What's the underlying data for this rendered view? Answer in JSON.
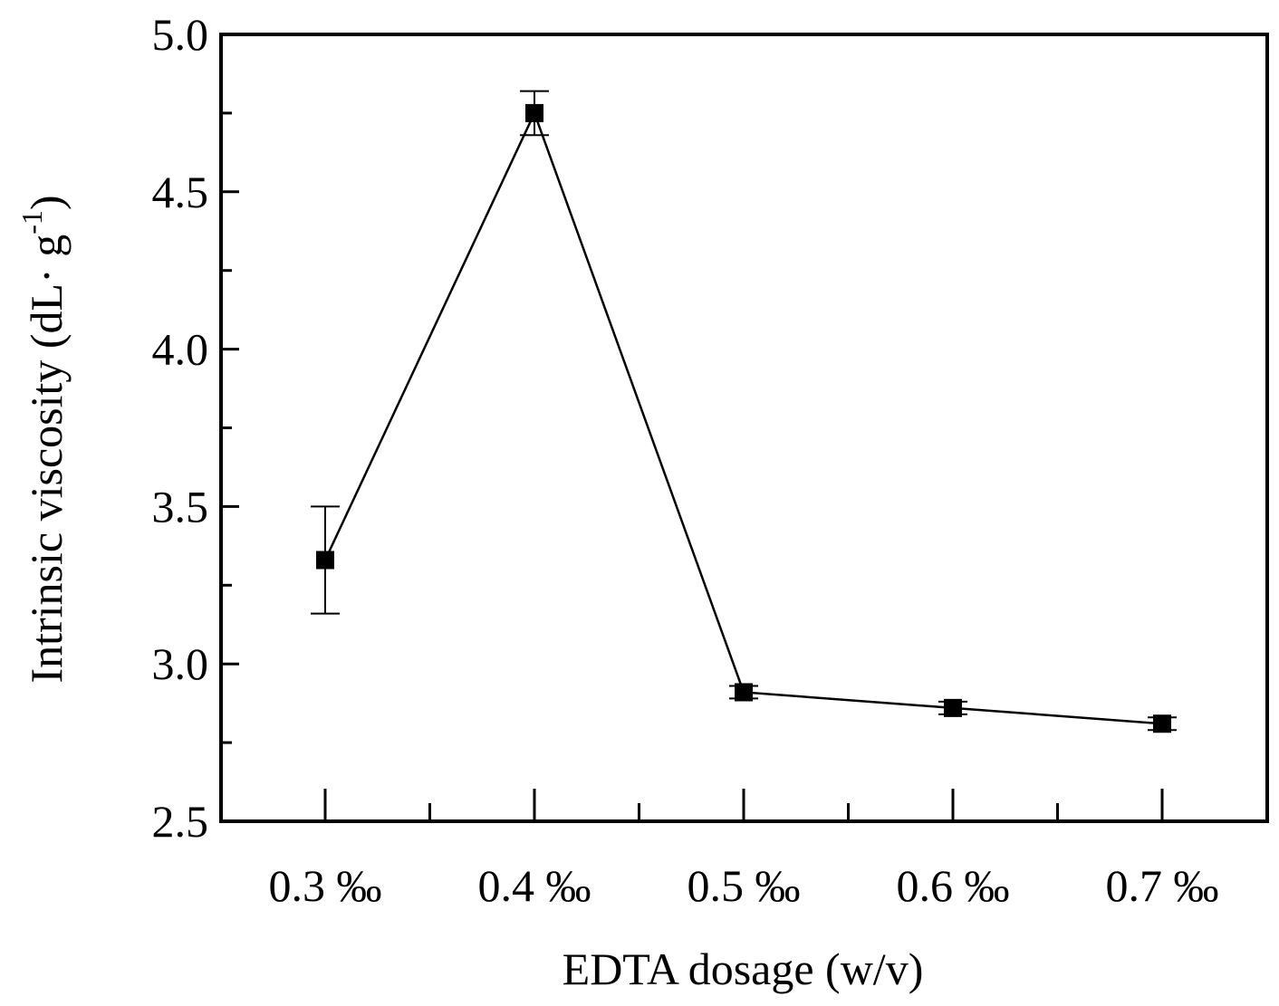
{
  "chart_data": {
    "type": "line",
    "categories": [
      "0.3 ‰",
      "0.4 ‰",
      "0.5 ‰",
      "0.6 ‰",
      "0.7 ‰"
    ],
    "series": [
      {
        "values": [
          3.33,
          4.75,
          2.91,
          2.86,
          2.81
        ],
        "errors": [
          0.17,
          0.07,
          0.02,
          0.02,
          0.02
        ],
        "marker": "square",
        "color": "#000000"
      }
    ],
    "xlabel": "EDTA dosage (w/v)",
    "ylabel": {
      "main": "Intrinsic viscosity (dL· g",
      "superscript": "-1",
      "close": ")"
    },
    "ylim": [
      2.5,
      5.0
    ],
    "yticks": [
      "2.5",
      "3.0",
      "3.5",
      "4.0",
      "4.5",
      "5.0"
    ],
    "y_minor_step": 0.25,
    "grid": false,
    "legend": "none"
  }
}
